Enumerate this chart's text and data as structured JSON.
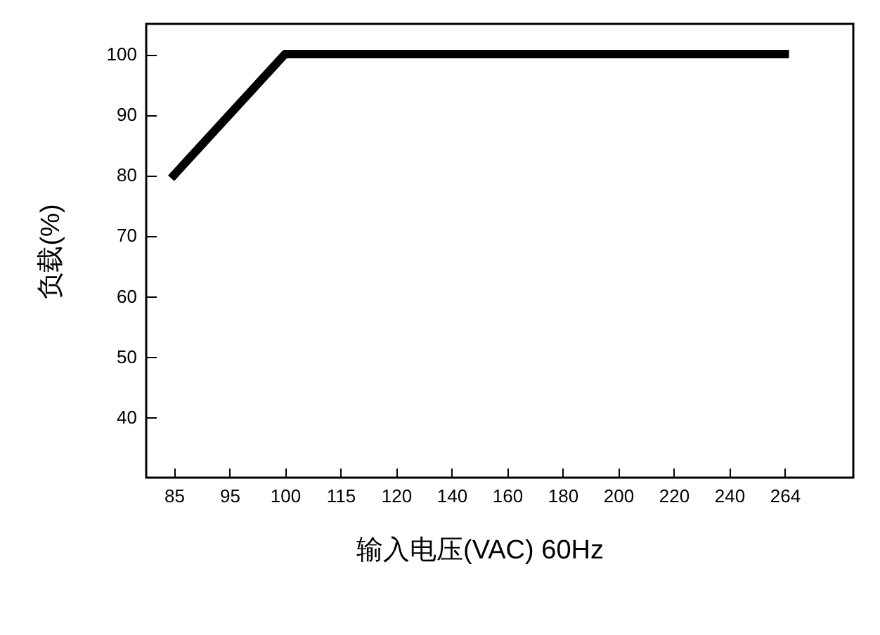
{
  "chart_data": {
    "type": "line",
    "xlabel": "输入电压(VAC) 60Hz",
    "ylabel": "负载(%)",
    "categories": [
      "85",
      "95",
      "100",
      "115",
      "120",
      "140",
      "160",
      "180",
      "200",
      "220",
      "240",
      "264"
    ],
    "series": [
      {
        "color": "#000000",
        "values": [
          80,
          null,
          100,
          null,
          null,
          null,
          null,
          null,
          null,
          null,
          null,
          100
        ]
      }
    ],
    "ylim": [
      30,
      105
    ],
    "yticks": [
      40,
      50,
      60,
      70,
      80,
      90,
      100
    ],
    "marker": "none",
    "line_style": "solid"
  }
}
